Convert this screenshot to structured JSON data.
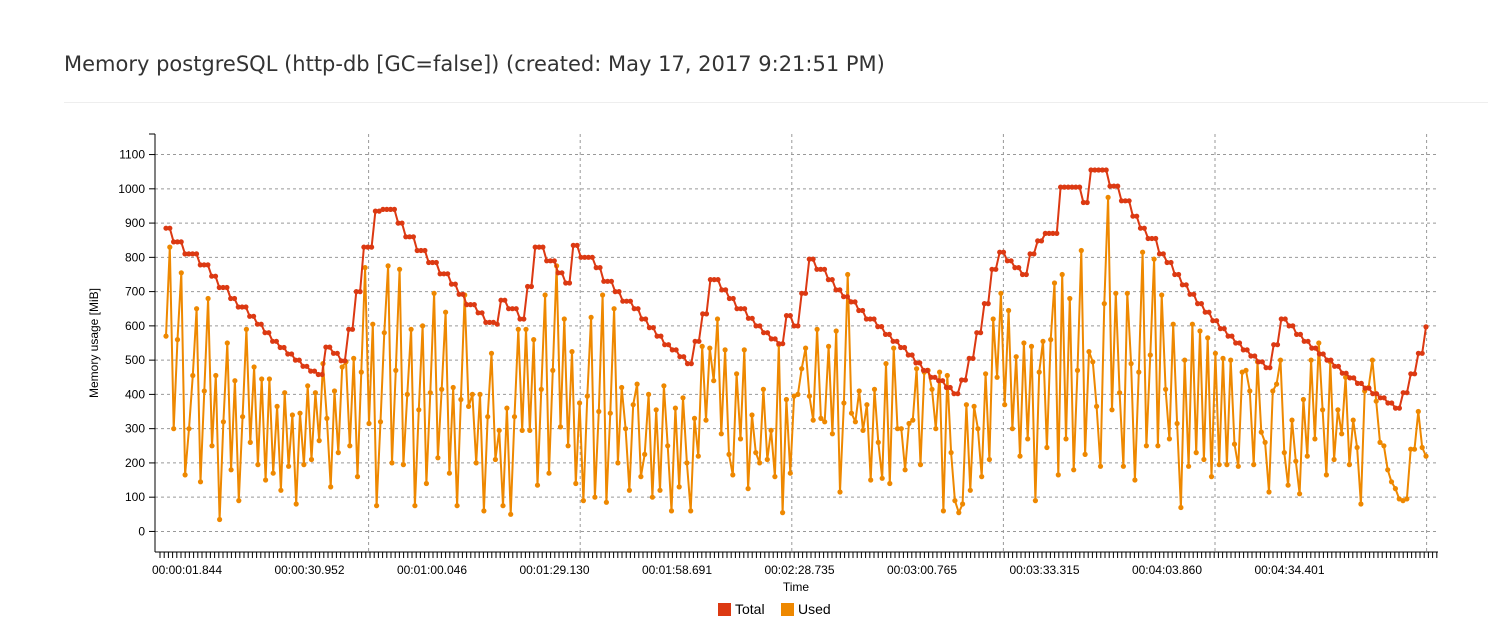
{
  "chart_data": {
    "type": "line",
    "title": "Memory postgreSQL (http-db [GC=false]) (created: May 17, 2017 9:21:51 PM)",
    "xlabel": "Time",
    "ylabel": "Memory usage [MiB]",
    "ylim": [
      -60,
      1160
    ],
    "yticks": [
      0,
      100,
      200,
      300,
      400,
      500,
      600,
      700,
      800,
      900,
      1000,
      1100
    ],
    "xtick_labels": [
      "00:00:01.844",
      "00:00:30.952",
      "00:01:00.046",
      "00:01:29.130",
      "00:01:58.691",
      "00:02:28.735",
      "00:03:00.765",
      "00:03:33.315",
      "00:04:03.860",
      "00:04:34.401"
    ],
    "grid": true,
    "legend": "bottom-center",
    "series": [
      {
        "name": "Total",
        "color": "#dc3912",
        "values": [
          885,
          885,
          845,
          845,
          845,
          810,
          810,
          810,
          810,
          778,
          778,
          778,
          745,
          745,
          712,
          712,
          712,
          680,
          680,
          655,
          655,
          655,
          628,
          628,
          605,
          605,
          580,
          580,
          555,
          555,
          537,
          537,
          518,
          518,
          500,
          500,
          482,
          482,
          468,
          468,
          458,
          458,
          538,
          538,
          520,
          520,
          498,
          498,
          590,
          590,
          700,
          700,
          830,
          830,
          830,
          935,
          935,
          940,
          940,
          940,
          940,
          900,
          900,
          860,
          860,
          860,
          820,
          820,
          820,
          785,
          785,
          785,
          752,
          752,
          752,
          722,
          722,
          692,
          692,
          662,
          662,
          662,
          638,
          638,
          610,
          610,
          610,
          605,
          675,
          675,
          650,
          650,
          650,
          620,
          620,
          715,
          715,
          830,
          830,
          830,
          790,
          790,
          790,
          755,
          755,
          725,
          725,
          835,
          835,
          800,
          800,
          800,
          800,
          770,
          770,
          730,
          730,
          730,
          700,
          700,
          672,
          672,
          672,
          650,
          650,
          620,
          620,
          595,
          595,
          570,
          570,
          545,
          545,
          530,
          530,
          510,
          510,
          490,
          490,
          555,
          555,
          635,
          635,
          735,
          735,
          735,
          705,
          705,
          680,
          680,
          650,
          650,
          650,
          622,
          622,
          600,
          600,
          580,
          580,
          562,
          562,
          548,
          548,
          630,
          630,
          600,
          600,
          695,
          695,
          795,
          795,
          765,
          765,
          765,
          735,
          735,
          705,
          705,
          685,
          685,
          670,
          670,
          645,
          645,
          620,
          620,
          620,
          598,
          598,
          575,
          575,
          555,
          555,
          537,
          537,
          515,
          515,
          492,
          492,
          470,
          470,
          450,
          450,
          440,
          440,
          420,
          420,
          402,
          402,
          442,
          442,
          505,
          505,
          580,
          580,
          665,
          665,
          765,
          765,
          815,
          815,
          790,
          790,
          770,
          770,
          750,
          750,
          810,
          810,
          848,
          848,
          870,
          870,
          870,
          870,
          1005,
          1005,
          1005,
          1005,
          1005,
          1005,
          960,
          960,
          1055,
          1055,
          1055,
          1055,
          1055,
          1008,
          1008,
          1008,
          965,
          965,
          965,
          920,
          920,
          885,
          885,
          855,
          855,
          855,
          810,
          810,
          785,
          785,
          750,
          750,
          720,
          720,
          692,
          692,
          665,
          665,
          640,
          640,
          615,
          615,
          592,
          592,
          570,
          570,
          550,
          550,
          530,
          530,
          512,
          512,
          495,
          495,
          478,
          478,
          545,
          545,
          620,
          620,
          600,
          600,
          575,
          575,
          555,
          555,
          535,
          535,
          518,
          518,
          500,
          500,
          482,
          482,
          462,
          462,
          448,
          448,
          432,
          432,
          418,
          418,
          402,
          402,
          390,
          390,
          375,
          375,
          360,
          360,
          405,
          405,
          460,
          460,
          520,
          520,
          597
        ]
      },
      {
        "name": "Used",
        "color": "#ee8800",
        "values": [
          570,
          830,
          300,
          560,
          755,
          165,
          300,
          455,
          650,
          145,
          410,
          680,
          250,
          455,
          35,
          320,
          550,
          180,
          440,
          90,
          335,
          590,
          260,
          480,
          195,
          445,
          150,
          445,
          170,
          365,
          120,
          405,
          190,
          340,
          80,
          345,
          195,
          425,
          210,
          405,
          265,
          490,
          330,
          130,
          410,
          230,
          480,
          495,
          250,
          505,
          160,
          465,
          770,
          315,
          605,
          75,
          320,
          580,
          775,
          200,
          470,
          765,
          195,
          400,
          590,
          75,
          355,
          600,
          140,
          405,
          695,
          215,
          415,
          640,
          170,
          420,
          75,
          385,
          690,
          365,
          400,
          200,
          400,
          60,
          335,
          520,
          210,
          295,
          75,
          360,
          50,
          335,
          590,
          295,
          590,
          295,
          560,
          135,
          415,
          690,
          170,
          470,
          775,
          305,
          620,
          250,
          525,
          140,
          375,
          90,
          395,
          625,
          100,
          350,
          690,
          85,
          345,
          650,
          200,
          420,
          300,
          120,
          370,
          430,
          160,
          225,
          400,
          100,
          355,
          120,
          425,
          250,
          60,
          360,
          130,
          390,
          200,
          60,
          330,
          220,
          540,
          325,
          535,
          440,
          620,
          285,
          530,
          225,
          165,
          460,
          270,
          530,
          125,
          340,
          230,
          200,
          415,
          210,
          295,
          160,
          545,
          55,
          385,
          170,
          395,
          400,
          475,
          535,
          395,
          325,
          590,
          330,
          320,
          540,
          285,
          585,
          115,
          375,
          750,
          345,
          320,
          410,
          295,
          370,
          150,
          415,
          260,
          155,
          490,
          140,
          535,
          300,
          300,
          180,
          315,
          325,
          475,
          195,
          465,
          470,
          415,
          300,
          465,
          60,
          455,
          230,
          90,
          55,
          80,
          370,
          120,
          365,
          300,
          160,
          460,
          210,
          620,
          450,
          695,
          370,
          645,
          300,
          510,
          220,
          550,
          270,
          540,
          90,
          465,
          555,
          245,
          560,
          725,
          165,
          750,
          270,
          680,
          180,
          470,
          820,
          225,
          525,
          495,
          365,
          190,
          665,
          975,
          355,
          695,
          405,
          190,
          695,
          490,
          150,
          465,
          815,
          250,
          515,
          795,
          250,
          690,
          415,
          270,
          605,
          315,
          70,
          500,
          190,
          605,
          230,
          585,
          210,
          565,
          160,
          520,
          195,
          505,
          195,
          500,
          255,
          190,
          465,
          470,
          410,
          195,
          495,
          290,
          260,
          115,
          410,
          430,
          500,
          230,
          135,
          325,
          205,
          110,
          385,
          220,
          500,
          270,
          550,
          355,
          165,
          495,
          210,
          355,
          285,
          450,
          195,
          325,
          245,
          80,
          410,
          420,
          500,
          380,
          260,
          250,
          180,
          145,
          125,
          95,
          90,
          95,
          240,
          240,
          350,
          245,
          220
        ]
      }
    ]
  }
}
